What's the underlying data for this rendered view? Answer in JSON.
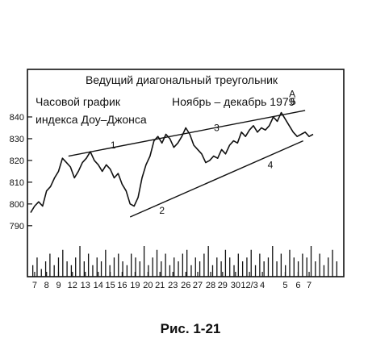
{
  "chart_data": {
    "type": "line",
    "title": "Ведущий диагональный треугольник",
    "subtitle_left": [
      "Часовой график",
      "индекса Доу–Джонса"
    ],
    "subtitle_right": "Ноябрь – декабрь 1979",
    "caption": "Рис. 1-21",
    "ylim": [
      784,
      850
    ],
    "yticks": [
      790,
      800,
      810,
      820,
      830,
      840
    ],
    "xrange": [
      0,
      31
    ],
    "xticks": [
      {
        "label": "7",
        "x": 0.4
      },
      {
        "label": "8",
        "x": 1.6
      },
      {
        "label": "9",
        "x": 2.8
      },
      {
        "label": "12",
        "x": 4.2
      },
      {
        "label": "13",
        "x": 5.5
      },
      {
        "label": "14",
        "x": 6.8
      },
      {
        "label": "15",
        "x": 8.0
      },
      {
        "label": "16",
        "x": 9.2
      },
      {
        "label": "19",
        "x": 10.5
      },
      {
        "label": "20",
        "x": 11.8
      },
      {
        "label": "21",
        "x": 13.0
      },
      {
        "label": "23",
        "x": 14.3
      },
      {
        "label": "26",
        "x": 15.6
      },
      {
        "label": "27",
        "x": 16.8
      },
      {
        "label": "28",
        "x": 18.1
      },
      {
        "label": "29",
        "x": 19.3
      },
      {
        "label": "30",
        "x": 20.6
      },
      {
        "label": "12/3",
        "x": 22.0
      },
      {
        "label": "4",
        "x": 23.3
      },
      {
        "label": "5",
        "x": 25.6
      },
      {
        "label": "6",
        "x": 26.9
      },
      {
        "label": "7",
        "x": 28.0
      }
    ],
    "series": [
      {
        "x": [
          0,
          0.4,
          0.8,
          1.2,
          1.6,
          2.0,
          2.4,
          2.8,
          3.2,
          3.6,
          4.0,
          4.4,
          4.8,
          5.2,
          5.6,
          6.0,
          6.4,
          6.8,
          7.2,
          7.6,
          8.0,
          8.4,
          8.8,
          9.2,
          9.6,
          10.0,
          10.4,
          10.8,
          11.2,
          11.6,
          12.0,
          12.4,
          12.8,
          13.2,
          13.6,
          14.0,
          14.4,
          14.8,
          15.2,
          15.6,
          16.0,
          16.4,
          16.8,
          17.2,
          17.6,
          18.0,
          18.4,
          18.8,
          19.2,
          19.6,
          20.0,
          20.4,
          20.8,
          21.2,
          21.6,
          22.0,
          22.4,
          22.8,
          23.2,
          23.6,
          24.0,
          24.4,
          24.8,
          25.2,
          25.6,
          26.0,
          26.4,
          26.8,
          27.2,
          27.6,
          28.0,
          28.4
        ],
        "values": [
          796,
          799,
          801,
          799,
          806,
          808,
          812,
          815,
          821,
          819,
          817,
          812,
          815,
          819,
          821,
          824,
          820,
          818,
          815,
          818,
          816,
          812,
          814,
          809,
          806,
          800,
          799,
          803,
          812,
          818,
          822,
          829,
          831,
          828,
          832,
          830,
          826,
          828,
          831,
          835,
          832,
          827,
          825,
          823,
          819,
          820,
          822,
          821,
          825,
          823,
          827,
          829,
          828,
          833,
          831,
          834,
          836,
          833,
          835,
          834,
          836,
          840,
          838,
          842,
          839,
          836,
          833,
          831,
          832,
          833,
          831,
          832
        ]
      }
    ],
    "channel_lines": [
      {
        "from": [
          3.8,
          822
        ],
        "to": [
          27.6,
          843
        ]
      },
      {
        "from": [
          10.0,
          794
        ],
        "to": [
          27.4,
          829
        ]
      }
    ],
    "wave_labels": [
      {
        "text": "1",
        "x": 8.3,
        "y": 825.5
      },
      {
        "text": "2",
        "x": 13.2,
        "y": 795.5
      },
      {
        "text": "3",
        "x": 18.7,
        "y": 833.5
      },
      {
        "text": "4",
        "x": 24.1,
        "y": 816.5
      },
      {
        "text": "5",
        "x": 26.4,
        "y": 845.5
      },
      {
        "text": "A",
        "x": 26.3,
        "y": 849.0
      }
    ],
    "volume": [
      3,
      5,
      2,
      4,
      6,
      3,
      5,
      7,
      4,
      3,
      5,
      8,
      4,
      6,
      3,
      5,
      4,
      7,
      3,
      5,
      6,
      4,
      3,
      6,
      5,
      4,
      8,
      3,
      5,
      7,
      4,
      6,
      3,
      5,
      4,
      6,
      7,
      3,
      5,
      4,
      6,
      8,
      3,
      5,
      4,
      7,
      5,
      3,
      6,
      4,
      5,
      7,
      3,
      6,
      4,
      5,
      8,
      4,
      6,
      3,
      7,
      5,
      4,
      6,
      5,
      8,
      4,
      6,
      3,
      5,
      7,
      4
    ]
  }
}
